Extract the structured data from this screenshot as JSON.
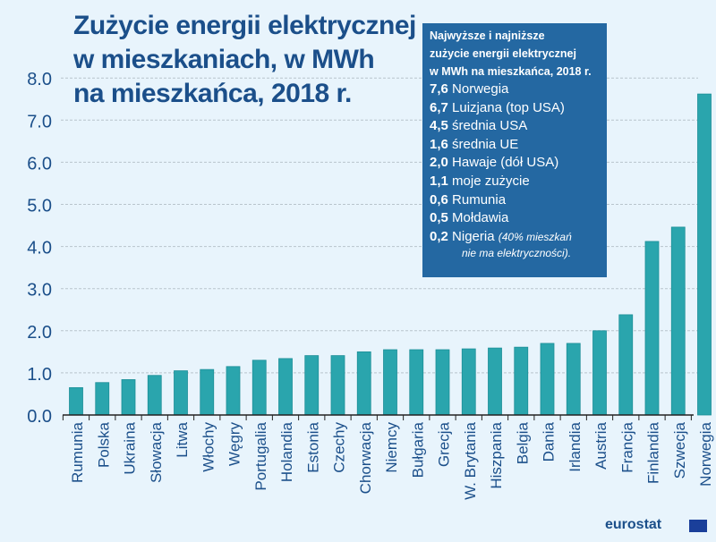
{
  "title_lines": [
    "Zużycie energii elektrycznej",
    "w mieszkaniach, w MWh",
    "na mieszkańca, 2018 r."
  ],
  "infobox": {
    "header": [
      "Najwyższe i najniższe",
      "zużycie energii elektrycznej",
      "w MWh na mieszkańca, 2018 r."
    ],
    "rows": [
      {
        "value": "7,6",
        "label": "Norwegia"
      },
      {
        "value": "6,7",
        "label": "Luizjana (top USA)"
      },
      {
        "value": "4,5",
        "label": "średnia USA"
      },
      {
        "value": "1,6",
        "label": "średnia UE"
      },
      {
        "value": "2,0",
        "label": "Hawaje (dół USA)"
      },
      {
        "value": "1,1",
        "label": "moje zużycie"
      },
      {
        "value": "0,6",
        "label": "Rumunia"
      },
      {
        "value": "0,5",
        "label": "Mołdawia"
      },
      {
        "value": "0,2",
        "label": "Nigeria",
        "note": "(40% mieszkań",
        "note2": "nie ma elektryczności)."
      }
    ]
  },
  "logo": "eurostat",
  "colors": {
    "bar": "#2aa5ad",
    "title": "#1b4f8a",
    "box": "#2468a2"
  },
  "chart_data": {
    "type": "bar",
    "categories": [
      "Rumunia",
      "Polska",
      "Ukraina",
      "Słowacja",
      "Litwa",
      "Włochy",
      "Węgry",
      "Portugalia",
      "Holandia",
      "Estonia",
      "Czechy",
      "Chorwacja",
      "Niemcy",
      "Bułgaria",
      "Grecja",
      "W. Brytania",
      "Hiszpania",
      "Belgia",
      "Dania",
      "Irlandia",
      "Austria",
      "Francja",
      "Finlandia",
      "Szwecja",
      "Norwegia"
    ],
    "values": [
      0.65,
      0.77,
      0.84,
      0.94,
      1.05,
      1.08,
      1.15,
      1.3,
      1.34,
      1.41,
      1.41,
      1.5,
      1.55,
      1.55,
      1.55,
      1.57,
      1.59,
      1.61,
      1.7,
      1.7,
      2.0,
      2.38,
      4.12,
      4.46,
      7.62
    ],
    "yticks": [
      "0.0",
      "1.0",
      "2.0",
      "3.0",
      "4.0",
      "5.0",
      "6.0",
      "7.0",
      "8.0"
    ],
    "ylim": [
      0,
      8
    ],
    "grid": true
  }
}
